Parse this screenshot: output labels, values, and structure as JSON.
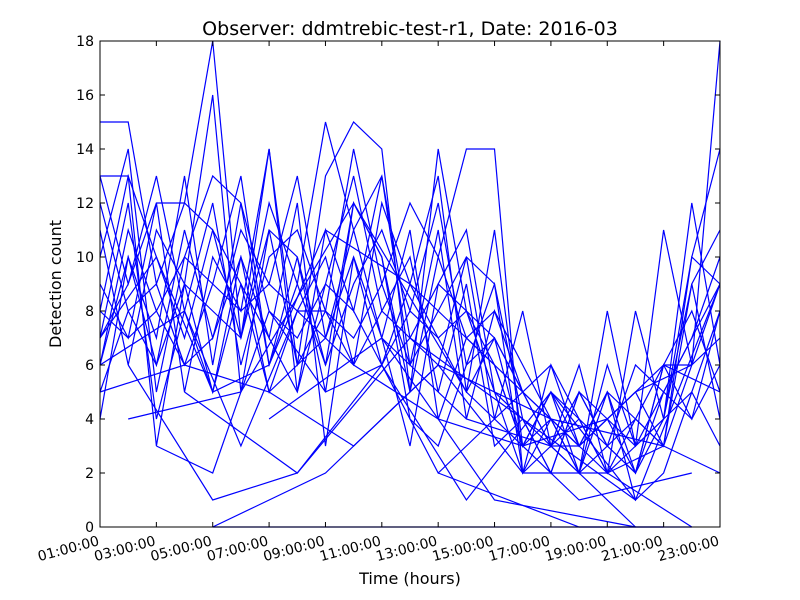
{
  "chart_data": {
    "type": "line",
    "title": "Observer: ddmtrebic-test-r1, Date: 2016-03",
    "xlabel": "Time (hours)",
    "ylabel": "Detection count",
    "xlim": [
      0,
      22
    ],
    "ylim": [
      0,
      18
    ],
    "x_ticks": [
      {
        "hour": 0,
        "label": "01:00:00"
      },
      {
        "hour": 2,
        "label": "03:00:00"
      },
      {
        "hour": 4,
        "label": "05:00:00"
      },
      {
        "hour": 6,
        "label": "07:00:00"
      },
      {
        "hour": 8,
        "label": "09:00:00"
      },
      {
        "hour": 10,
        "label": "11:00:00"
      },
      {
        "hour": 12,
        "label": "13:00:00"
      },
      {
        "hour": 14,
        "label": "15:00:00"
      },
      {
        "hour": 16,
        "label": "17:00:00"
      },
      {
        "hour": 18,
        "label": "19:00:00"
      },
      {
        "hour": 20,
        "label": "21:00:00"
      },
      {
        "hour": 22,
        "label": "23:00:00"
      }
    ],
    "y_ticks": [
      0,
      2,
      4,
      6,
      8,
      10,
      12,
      14,
      16,
      18
    ],
    "grid": false,
    "line_color": "#0000ff",
    "series": [
      {
        "x": [
          0,
          1,
          2,
          3,
          4,
          5,
          6,
          7,
          8,
          9,
          10,
          11,
          12,
          13,
          14,
          15,
          16,
          17,
          18,
          19,
          20,
          21,
          22
        ],
        "y": [
          15,
          15,
          9,
          12,
          18,
          7,
          14,
          6,
          13,
          15,
          14,
          5,
          14,
          8,
          7,
          3,
          4,
          2,
          8,
          3,
          11,
          6,
          18
        ]
      },
      {
        "x": [
          0,
          1,
          2,
          3,
          4,
          5,
          6,
          7,
          8,
          9,
          10,
          11,
          12,
          13,
          14,
          15,
          16,
          17,
          18,
          19,
          20,
          21,
          22
        ],
        "y": [
          13,
          13,
          3,
          9,
          16,
          5,
          11,
          6,
          8,
          14,
          9,
          12,
          10,
          14,
          14,
          2,
          6,
          3,
          5,
          2,
          4,
          10,
          14
        ]
      },
      {
        "x": [
          0,
          1,
          2,
          3,
          4,
          5,
          6,
          7,
          8,
          9,
          10,
          11,
          12,
          13,
          14,
          15,
          16,
          17,
          18,
          19,
          20,
          21,
          22
        ],
        "y": [
          10,
          14,
          5,
          10,
          13,
          12,
          6,
          9,
          15,
          11,
          13,
          7,
          6,
          10,
          4,
          8,
          3,
          6,
          2,
          4,
          3,
          9,
          11
        ]
      },
      {
        "x": [
          0,
          1,
          2,
          3,
          4,
          5,
          6,
          7,
          8,
          9,
          10,
          11,
          12,
          13,
          14,
          15,
          16,
          17,
          18,
          19,
          20,
          21,
          22
        ],
        "y": [
          7,
          9,
          13,
          8,
          5,
          10,
          7,
          12,
          3,
          10,
          6,
          9,
          13,
          5,
          11,
          3,
          5,
          2,
          3,
          6,
          5,
          7,
          9
        ]
      },
      {
        "x": [
          0,
          1,
          2,
          3,
          4,
          5,
          6,
          7,
          8,
          9,
          10,
          11,
          12,
          13,
          14,
          15,
          16,
          17,
          18,
          19,
          20,
          21,
          22
        ],
        "y": [
          6,
          11,
          8,
          6,
          9,
          13,
          6,
          10,
          5,
          12,
          10,
          4,
          3,
          6,
          9,
          4,
          2,
          5,
          3,
          2,
          6,
          4,
          8
        ]
      },
      {
        "x": [
          0,
          1,
          2,
          3,
          4,
          5,
          6,
          7,
          8,
          9,
          10,
          11,
          12,
          13,
          14,
          15,
          16,
          17,
          18,
          19,
          20,
          21,
          22
        ],
        "y": [
          9,
          7,
          12,
          5,
          10,
          8,
          14,
          5,
          11,
          8,
          13,
          6,
          11,
          4,
          8,
          5,
          4,
          3,
          5,
          1,
          2,
          5,
          3
        ]
      },
      {
        "x": [
          0,
          1,
          2,
          3,
          4,
          5,
          6,
          7,
          8,
          9,
          10,
          11,
          12,
          13,
          14,
          15,
          16,
          17,
          18,
          19,
          20,
          21,
          22
        ],
        "y": [
          12,
          8,
          6,
          11,
          7,
          11,
          9,
          13,
          7,
          11,
          7,
          3,
          9,
          11,
          5,
          2,
          3,
          4,
          2,
          3,
          4,
          12,
          6
        ]
      },
      {
        "x": [
          0,
          1,
          2,
          3,
          4,
          5,
          6,
          7,
          8,
          9,
          10,
          11,
          12,
          13,
          14,
          15,
          16,
          17,
          18,
          19,
          20,
          21,
          22
        ],
        "y": [
          8,
          13,
          10,
          7,
          11,
          9,
          5,
          8,
          10,
          6,
          12,
          9,
          7,
          8,
          6,
          3,
          5,
          3,
          4,
          5,
          3,
          6,
          7
        ]
      },
      {
        "x": [
          0,
          1,
          2,
          3,
          4,
          5,
          6,
          7,
          8,
          9,
          10,
          11,
          12,
          13,
          14,
          15,
          16,
          17,
          18,
          19,
          20,
          21,
          22
        ],
        "y": [
          4,
          10,
          7,
          13,
          6,
          12,
          8,
          7,
          9,
          13,
          8,
          10,
          5,
          9,
          3,
          4,
          2,
          5,
          3,
          4,
          6,
          8,
          5
        ]
      },
      {
        "x": [
          0,
          1,
          2,
          3,
          4,
          5,
          6,
          7,
          8,
          9,
          10,
          11,
          12,
          13,
          14,
          15,
          16,
          17,
          18,
          19,
          20,
          21,
          22
        ],
        "y": [
          11,
          6,
          11,
          9,
          8,
          7,
          12,
          9,
          6,
          9,
          11,
          8,
          12,
          6,
          7,
          5,
          3,
          2,
          6,
          3,
          5,
          7,
          10
        ]
      },
      {
        "x": [
          0,
          1,
          2,
          3,
          4,
          5,
          6,
          7,
          8,
          9,
          10,
          11,
          12,
          13,
          14,
          15,
          16,
          17,
          18,
          19,
          20,
          21,
          22
        ],
        "y": [
          7,
          12,
          4,
          8,
          12,
          6,
          10,
          11,
          8,
          7,
          9,
          6,
          8,
          10,
          9,
          2,
          4,
          3,
          2,
          8,
          4,
          9,
          4
        ]
      },
      {
        "x": [
          0,
          1,
          2,
          3,
          4,
          5,
          6,
          7,
          8,
          9,
          10,
          11,
          12,
          13,
          14,
          15,
          16,
          17,
          18,
          19,
          20,
          21,
          22
        ],
        "y": [
          5,
          8,
          9,
          6,
          7,
          10,
          5,
          6,
          7,
          10,
          7,
          11,
          4,
          7,
          6,
          3,
          5,
          4,
          3,
          2,
          6,
          6,
          9
        ]
      },
      {
        "x": [
          0,
          1,
          2,
          3,
          4,
          5,
          6,
          7,
          8,
          9,
          10,
          11,
          12,
          13,
          14,
          15,
          16,
          17,
          18,
          19,
          20,
          21,
          22
        ],
        "y": [
          8,
          7,
          8,
          10,
          9,
          8,
          9,
          8,
          8,
          6,
          8,
          7,
          9,
          8,
          5,
          4,
          3,
          5,
          4,
          3,
          4,
          5,
          8
        ]
      },
      {
        "x": [
          0,
          1,
          2,
          3,
          4,
          5,
          6,
          7,
          8,
          9,
          10,
          11,
          12,
          13,
          14,
          15,
          16,
          17,
          18,
          19,
          20,
          21,
          22
        ],
        "y": [
          13,
          9,
          12,
          12,
          11,
          7,
          11,
          10,
          6,
          12,
          10,
          5,
          10,
          7,
          8,
          6,
          4,
          2,
          5,
          4,
          3,
          10,
          9
        ]
      },
      {
        "x": [
          0,
          1,
          2,
          3,
          4,
          5,
          6,
          7,
          8,
          9,
          10,
          11,
          12,
          13,
          14,
          15,
          16,
          17,
          18,
          19,
          20,
          21,
          22
        ],
        "y": [
          6,
          10,
          6,
          9,
          5,
          9,
          7,
          5,
          9,
          8,
          6,
          8,
          7,
          5,
          7,
          5,
          3,
          3,
          4,
          2,
          5,
          4,
          6
        ]
      },
      {
        "x": [
          0,
          3,
          5,
          7,
          9,
          12,
          15,
          18,
          20,
          22
        ],
        "y": [
          6,
          8,
          3,
          8,
          6,
          4,
          3,
          4,
          6,
          5
        ]
      },
      {
        "x": [
          0,
          2,
          4,
          6,
          8,
          11,
          14,
          17,
          19,
          21
        ],
        "y": [
          7,
          10,
          5,
          6,
          11,
          9,
          6,
          3,
          5,
          6
        ]
      },
      {
        "x": [
          1,
          4,
          7,
          10,
          13,
          16,
          19,
          22
        ],
        "y": [
          6,
          1,
          2,
          6,
          1,
          5,
          1,
          9
        ]
      },
      {
        "x": [
          0,
          3,
          6,
          9,
          12,
          15,
          18,
          21
        ],
        "y": [
          5,
          6,
          5,
          3,
          6,
          2,
          2,
          0
        ]
      },
      {
        "x": [
          2,
          4,
          6,
          8,
          10,
          12,
          14,
          16,
          18,
          20,
          22
        ],
        "y": [
          3,
          2,
          8,
          5,
          6,
          2,
          4,
          6,
          2,
          3,
          2
        ]
      },
      {
        "x": [
          4,
          8,
          12,
          16,
          20
        ],
        "y": [
          0,
          2,
          6,
          4,
          3
        ]
      },
      {
        "x": [
          4,
          20
        ],
        "y": [
          0,
          0
        ]
      },
      {
        "x": [
          6,
          10,
          14,
          19
        ],
        "y": [
          4,
          7,
          1,
          0
        ]
      },
      {
        "x": [
          12,
          17,
          21
        ],
        "y": [
          2,
          0,
          0
        ]
      },
      {
        "x": [
          1,
          5,
          9,
          13,
          17,
          21
        ],
        "y": [
          4,
          5,
          12,
          5,
          1,
          2
        ]
      },
      {
        "x": [
          3,
          7,
          11,
          15,
          19
        ],
        "y": [
          5,
          2,
          7,
          4,
          1
        ]
      },
      {
        "x": [
          10,
          13,
          16,
          19
        ],
        "y": [
          7,
          4,
          3,
          0
        ]
      }
    ]
  }
}
